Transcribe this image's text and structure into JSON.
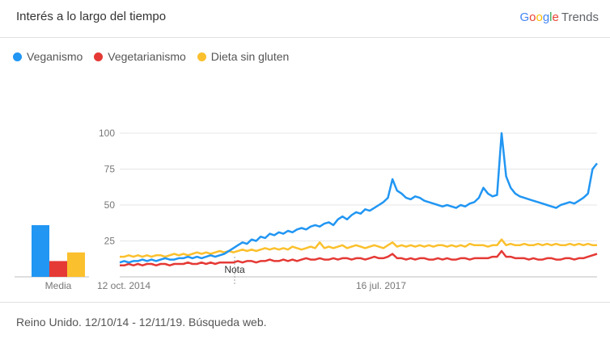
{
  "header": {
    "title": "Interés a lo largo del tiempo",
    "brand_google": [
      "G",
      "o",
      "o",
      "g",
      "l",
      "e"
    ],
    "brand_product": "Trends"
  },
  "legend": [
    {
      "label": "Veganismo",
      "color": "#2196f3"
    },
    {
      "label": "Vegetarianismo",
      "color": "#e53935"
    },
    {
      "label": "Dieta sin gluten",
      "color": "#fbc02d"
    }
  ],
  "footer": {
    "text": "Reino Unido. 12/10/14 - 12/11/19. Búsqueda web."
  },
  "chart_data": [
    {
      "type": "bar",
      "xlabel": "Media",
      "categories": [
        "Veganismo",
        "Vegetarianismo",
        "Dieta sin gluten"
      ],
      "values": [
        36,
        11,
        17
      ],
      "colors": [
        "#2196f3",
        "#e53935",
        "#fbc02d"
      ]
    },
    {
      "type": "line",
      "x_tick_labels": [
        "12 oct. 2014",
        "16 jul. 2017"
      ],
      "y_ticks": [
        25,
        50,
        75,
        100
      ],
      "ylim": [
        0,
        100
      ],
      "grid": true,
      "annotation": "Nota",
      "series": [
        {
          "name": "Veganismo",
          "color": "#2196f3",
          "values": [
            10,
            11,
            10,
            11,
            11,
            12,
            11,
            12,
            11,
            12,
            13,
            12,
            12,
            13,
            13,
            14,
            13,
            14,
            13,
            14,
            15,
            14,
            15,
            16,
            18,
            20,
            22,
            24,
            23,
            26,
            25,
            28,
            27,
            30,
            29,
            31,
            30,
            32,
            31,
            33,
            34,
            33,
            35,
            36,
            35,
            37,
            38,
            36,
            40,
            42,
            40,
            43,
            45,
            44,
            47,
            46,
            48,
            50,
            52,
            55,
            68,
            60,
            58,
            55,
            54,
            56,
            55,
            53,
            52,
            51,
            50,
            49,
            50,
            49,
            48,
            50,
            49,
            51,
            52,
            55,
            62,
            58,
            56,
            57,
            100,
            70,
            62,
            58,
            56,
            55,
            54,
            53,
            52,
            51,
            50,
            49,
            48,
            50,
            51,
            52,
            51,
            53,
            55,
            58,
            75,
            79
          ]
        },
        {
          "name": "Vegetarianismo",
          "color": "#e53935",
          "values": [
            8,
            8,
            9,
            8,
            9,
            8,
            9,
            9,
            8,
            9,
            9,
            8,
            9,
            9,
            9,
            10,
            9,
            9,
            10,
            9,
            10,
            9,
            10,
            10,
            10,
            10,
            11,
            10,
            11,
            11,
            10,
            11,
            11,
            12,
            11,
            11,
            12,
            11,
            12,
            11,
            12,
            13,
            12,
            12,
            13,
            12,
            12,
            13,
            12,
            13,
            13,
            12,
            13,
            13,
            12,
            13,
            14,
            13,
            13,
            14,
            16,
            13,
            13,
            12,
            13,
            12,
            13,
            13,
            12,
            12,
            13,
            12,
            13,
            12,
            12,
            13,
            13,
            12,
            13,
            13,
            13,
            13,
            14,
            14,
            18,
            14,
            14,
            13,
            13,
            13,
            12,
            13,
            12,
            12,
            13,
            13,
            12,
            12,
            13,
            13,
            12,
            13,
            13,
            14,
            15,
            16
          ]
        },
        {
          "name": "Dieta sin gluten",
          "color": "#fbc02d",
          "values": [
            14,
            14,
            15,
            14,
            15,
            14,
            15,
            14,
            15,
            15,
            14,
            15,
            16,
            15,
            16,
            15,
            16,
            17,
            16,
            17,
            16,
            17,
            18,
            17,
            18,
            17,
            18,
            19,
            18,
            19,
            18,
            19,
            20,
            19,
            20,
            19,
            20,
            19,
            21,
            20,
            19,
            20,
            21,
            20,
            24,
            20,
            21,
            20,
            21,
            22,
            20,
            21,
            22,
            21,
            20,
            21,
            22,
            21,
            20,
            22,
            24,
            21,
            22,
            21,
            22,
            21,
            22,
            21,
            22,
            21,
            22,
            22,
            21,
            22,
            21,
            22,
            21,
            23,
            22,
            22,
            22,
            21,
            22,
            22,
            26,
            22,
            23,
            22,
            22,
            23,
            22,
            22,
            23,
            22,
            23,
            22,
            23,
            22,
            22,
            23,
            22,
            23,
            22,
            23,
            22,
            22
          ]
        }
      ]
    }
  ]
}
